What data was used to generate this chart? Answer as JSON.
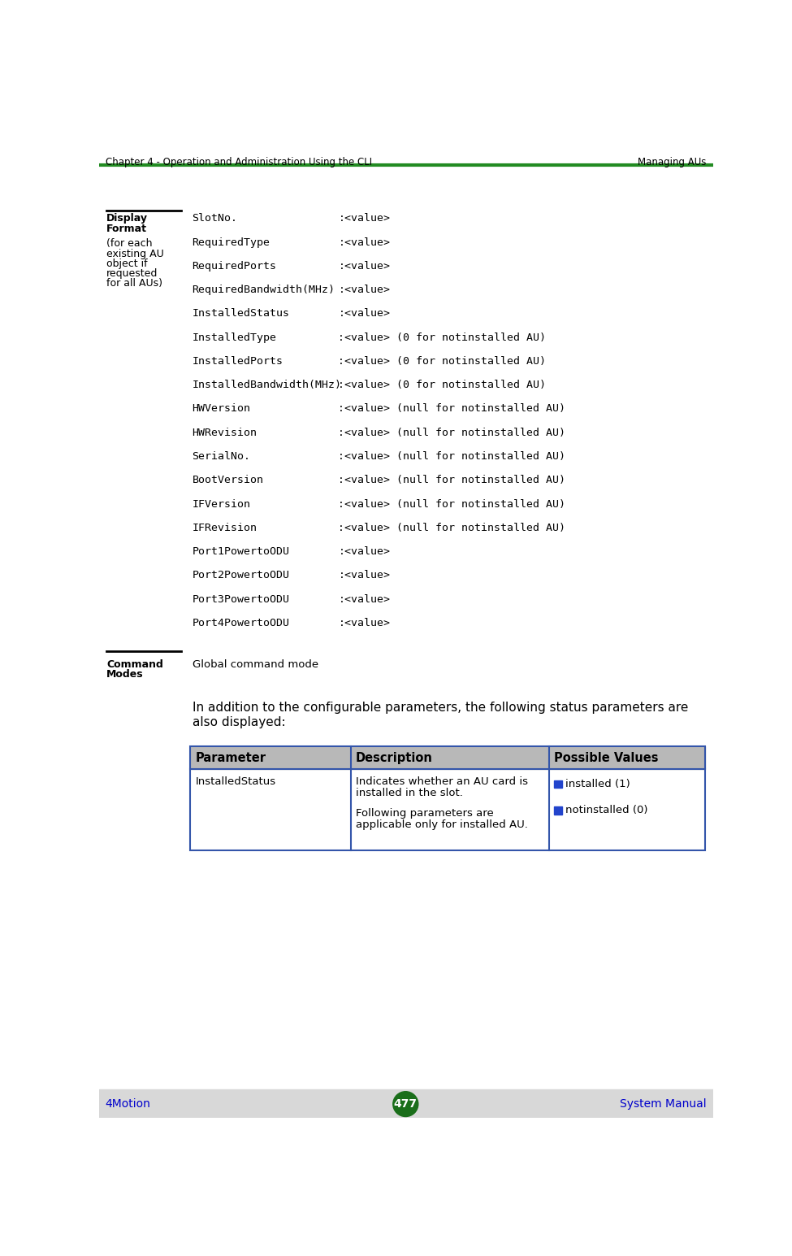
{
  "header_left": "Chapter 4 - Operation and Administration Using the CLI",
  "header_right": "Managing AUs",
  "header_line_color": "#228B22",
  "footer_left": "4Motion",
  "footer_center": "477",
  "footer_right": "System Manual",
  "footer_bg_color": "#d8d8d8",
  "footer_badge_color": "#1a6e1a",
  "footer_text_color": "#0000cc",
  "page_bg": "#ffffff",
  "display_format_label_line1": "Display",
  "display_format_label_line2": "Format",
  "display_format_label_line3": "(for each",
  "display_format_label_line4": "existing AU",
  "display_format_label_line5": "object if",
  "display_format_label_line6": "requested",
  "display_format_label_line7": "for all AUs)",
  "display_rows": [
    [
      "SlotNo.",
      ":<value>",
      ""
    ],
    [
      "RequiredType",
      ":<value>",
      ""
    ],
    [
      "RequiredPorts",
      ":<value>",
      ""
    ],
    [
      "RequiredBandwidth(MHz)",
      ":<value>",
      ""
    ],
    [
      "InstalledStatus",
      ":<value>",
      ""
    ],
    [
      "InstalledType",
      ":<value> (0 for notinstalled AU)",
      ""
    ],
    [
      "InstalledPorts",
      ":<value> (0 for notinstalled AU)",
      ""
    ],
    [
      "InstalledBandwidth(MHz)",
      ":<value> (0 for notinstalled AU)",
      ""
    ],
    [
      "HWVersion",
      ":<value> (null for notinstalled AU)",
      ""
    ],
    [
      "HWRevision",
      ":<value> (null for notinstalled AU)",
      ""
    ],
    [
      "SerialNo.",
      ":<value> (null for notinstalled AU)",
      ""
    ],
    [
      "BootVersion",
      ":<value> (null for notinstalled AU)",
      ""
    ],
    [
      "IFVersion",
      ":<value> (null for notinstalled AU)",
      ""
    ],
    [
      "IFRevision",
      ":<value> (null for notinstalled AU)",
      ""
    ],
    [
      "Port1PowertoODU",
      ":<value>",
      ""
    ],
    [
      "Port2PowertoODU",
      ":<value>",
      ""
    ],
    [
      "Port3PowertoODU",
      ":<value>",
      ""
    ],
    [
      "Port4PowertoODU",
      ":<value>",
      ""
    ]
  ],
  "command_modes_label_line1": "Command",
  "command_modes_label_line2": "Modes",
  "command_modes_value": "Global command mode",
  "body_text_line1": "In addition to the configurable parameters, the following status parameters are",
  "body_text_line2": "also displayed:",
  "table_headers": [
    "Parameter",
    "Description",
    "Possible Values"
  ],
  "table_header_bg": "#b8b8b8",
  "table_border_color": "#3355aa",
  "table_row_param": "InstalledStatus",
  "table_desc_line1": "Indicates whether an AU card is",
  "table_desc_line2": "installed in the slot.",
  "table_desc_line3": "Following parameters are",
  "table_desc_line4": "applicable only for installed AU.",
  "table_values": [
    "installed (1)",
    "notinstalled (0)"
  ],
  "bullet_color": "#2244cc"
}
